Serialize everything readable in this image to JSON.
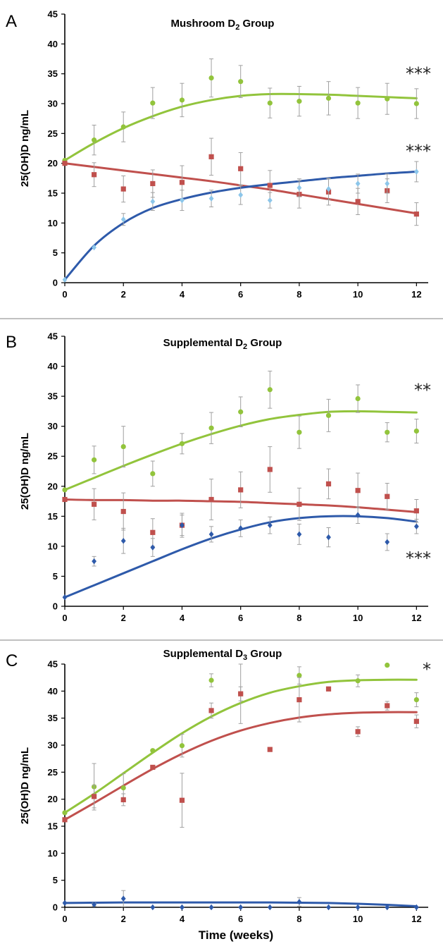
{
  "figure": {
    "x_axis_label": "Time (weeks)"
  },
  "colors": {
    "green": "#92c43c",
    "red": "#c0504d",
    "blue": "#2e5aaa",
    "light_blue": "#8cc6ea",
    "error_bar": "#a0a0a0"
  },
  "chart_data": [
    {
      "type": "scatter",
      "panel": "A",
      "title": "Mushroom D",
      "title_subscript": "2",
      "title_suffix": " Group",
      "ylabel": "25(OH)D ng/mL",
      "xlabel": "",
      "xlim": [
        0,
        12.4
      ],
      "ylim": [
        0,
        45
      ],
      "x_ticks": [
        0,
        2,
        4,
        6,
        8,
        10,
        12
      ],
      "y_ticks": [
        0,
        5,
        10,
        15,
        20,
        25,
        30,
        35,
        40,
        45
      ],
      "significance": [
        {
          "label": "***",
          "near_y": 35,
          "series": "green"
        },
        {
          "label": "***",
          "near_y": 22,
          "series": "blue"
        }
      ],
      "series": [
        {
          "name": "green",
          "marker": "circle",
          "color": "#92c43c",
          "x": [
            0,
            1,
            2,
            3,
            4,
            5,
            6,
            7,
            8,
            9,
            10,
            11,
            12
          ],
          "y": [
            20.5,
            23.9,
            26.1,
            30.1,
            30.6,
            34.3,
            33.7,
            30.1,
            30.4,
            30.9,
            30.1,
            30.8,
            30.0
          ],
          "err": [
            0,
            2.5,
            2.5,
            2.6,
            2.8,
            3.2,
            2.7,
            2.5,
            2.5,
            2.8,
            2.6,
            2.6,
            2.5
          ],
          "fit_x": [
            0,
            1,
            2,
            3,
            4,
            5,
            6,
            7,
            8,
            9,
            10,
            11,
            12
          ],
          "fit_y": [
            20.5,
            23.4,
            25.9,
            27.9,
            29.5,
            30.6,
            31.3,
            31.6,
            31.6,
            31.5,
            31.3,
            31.1,
            30.9
          ]
        },
        {
          "name": "red",
          "marker": "square",
          "color": "#c0504d",
          "x": [
            0,
            1,
            2,
            3,
            4,
            5,
            6,
            7,
            8,
            9,
            10,
            11,
            12
          ],
          "y": [
            20.0,
            18.1,
            15.7,
            16.6,
            16.8,
            21.1,
            19.1,
            16.3,
            14.8,
            15.2,
            13.6,
            15.4,
            11.5
          ],
          "err": [
            0,
            2.0,
            2.2,
            2.3,
            2.8,
            3.1,
            2.7,
            2.5,
            2.3,
            2.2,
            2.2,
            2.0,
            1.9
          ],
          "fit_x": [
            0,
            1,
            2,
            3,
            4,
            5,
            6,
            7,
            8,
            9,
            10,
            11,
            12
          ],
          "fit_y": [
            20.0,
            19.4,
            18.8,
            18.2,
            17.6,
            17.0,
            16.3,
            15.6,
            14.8,
            14.0,
            13.2,
            12.4,
            11.6
          ]
        },
        {
          "name": "blue",
          "marker": "diamond",
          "color": "#8cc6ea",
          "x": [
            0,
            1,
            2,
            3,
            4,
            5,
            6,
            7,
            8,
            9,
            10,
            11,
            12
          ],
          "y": [
            0.5,
            5.9,
            10.6,
            13.6,
            13.8,
            14.1,
            14.7,
            13.8,
            15.9,
            15.7,
            16.6,
            16.6,
            18.6
          ],
          "err": [
            0,
            0,
            1.0,
            1.5,
            1.7,
            1.4,
            1.6,
            1.3,
            1.5,
            1.8,
            1.6,
            1.6,
            1.7
          ],
          "fit_x": [
            0,
            1,
            2,
            3,
            4,
            5,
            6,
            7,
            8,
            9,
            10,
            11,
            12
          ],
          "fit_y": [
            0.5,
            6.2,
            10.0,
            12.5,
            14.0,
            15.1,
            15.9,
            16.5,
            17.0,
            17.5,
            17.9,
            18.3,
            18.6
          ],
          "fit_color": "#2e5aaa"
        }
      ]
    },
    {
      "type": "scatter",
      "panel": "B",
      "title": "Supplemental D",
      "title_subscript": "2",
      "title_suffix": " Group",
      "ylabel": "25(OH)D ng/mL",
      "xlabel": "",
      "xlim": [
        0,
        12.4
      ],
      "ylim": [
        0,
        45
      ],
      "x_ticks": [
        0,
        2,
        4,
        6,
        8,
        10,
        12
      ],
      "y_ticks": [
        0,
        5,
        10,
        15,
        20,
        25,
        30,
        35,
        40,
        45
      ],
      "significance": [
        {
          "label": "**",
          "near_y": 36,
          "series": "green"
        },
        {
          "label": "***",
          "near_y": 8,
          "series": "blue"
        }
      ],
      "series": [
        {
          "name": "green",
          "marker": "circle",
          "color": "#92c43c",
          "x": [
            0,
            1,
            2,
            3,
            4,
            5,
            6,
            7,
            8,
            9,
            10,
            11,
            12
          ],
          "y": [
            19.4,
            24.4,
            26.6,
            22.1,
            27.1,
            29.7,
            32.4,
            36.1,
            29.0,
            31.8,
            34.6,
            29.0,
            29.2
          ],
          "err": [
            0,
            2.3,
            3.4,
            2.1,
            1.7,
            2.6,
            2.5,
            3.1,
            2.7,
            2.7,
            2.3,
            1.6,
            2.0
          ],
          "fit_x": [
            0,
            1,
            2,
            3,
            4,
            5,
            6,
            7,
            8,
            9,
            10,
            11,
            12
          ],
          "fit_y": [
            19.4,
            21.4,
            23.4,
            25.3,
            27.1,
            28.7,
            30.1,
            31.2,
            31.9,
            32.4,
            32.5,
            32.4,
            32.3
          ]
        },
        {
          "name": "red",
          "marker": "square",
          "color": "#c0504d",
          "x": [
            0,
            1,
            2,
            3,
            4,
            5,
            6,
            7,
            8,
            9,
            10,
            11,
            12
          ],
          "y": [
            17.8,
            17.0,
            15.8,
            12.3,
            13.5,
            17.8,
            19.4,
            22.8,
            17.0,
            20.4,
            19.3,
            18.3,
            15.9
          ],
          "err": [
            0,
            2.6,
            3.1,
            2.3,
            2.0,
            3.4,
            3.0,
            3.8,
            2.7,
            2.5,
            2.9,
            2.2,
            1.9
          ],
          "fit_x": [
            0,
            1,
            2,
            3,
            4,
            5,
            6,
            7,
            8,
            9,
            10,
            11,
            12
          ],
          "fit_y": [
            17.8,
            17.7,
            17.7,
            17.6,
            17.6,
            17.5,
            17.4,
            17.2,
            17.0,
            16.8,
            16.5,
            16.1,
            15.7
          ]
        },
        {
          "name": "blue",
          "marker": "diamond",
          "color": "#2e5aaa",
          "x": [
            0,
            1,
            2,
            3,
            4,
            5,
            6,
            7,
            8,
            9,
            10,
            11,
            12
          ],
          "y": [
            1.5,
            7.5,
            10.9,
            9.8,
            13.5,
            12.0,
            13.0,
            13.5,
            12.0,
            11.5,
            15.2,
            10.7,
            13.3
          ],
          "err": [
            0,
            0.8,
            2.1,
            1.5,
            1.7,
            1.3,
            1.4,
            1.4,
            1.7,
            1.6,
            1.4,
            1.4,
            1.2
          ],
          "fit_x": [
            0,
            1,
            2,
            3,
            4,
            5,
            6,
            7,
            8,
            9,
            10,
            11,
            12
          ],
          "fit_y": [
            1.5,
            3.5,
            5.5,
            7.5,
            9.5,
            11.3,
            12.8,
            14.0,
            14.7,
            15.0,
            15.0,
            14.7,
            14.1
          ]
        }
      ]
    },
    {
      "type": "scatter",
      "panel": "C",
      "title": "Supplemental D",
      "title_subscript": "3",
      "title_suffix": " Group",
      "ylabel": "25(OH)D ng/mL",
      "xlabel": "Time (weeks)",
      "xlim": [
        0,
        12.4
      ],
      "ylim": [
        0,
        45
      ],
      "x_ticks": [
        0,
        2,
        4,
        6,
        8,
        10,
        12
      ],
      "y_ticks": [
        0,
        5,
        10,
        15,
        20,
        25,
        30,
        35,
        40,
        45
      ],
      "significance": [
        {
          "label": "*",
          "near_y": 44,
          "series": "green"
        }
      ],
      "series": [
        {
          "name": "green",
          "marker": "circle",
          "color": "#92c43c",
          "x": [
            0,
            1,
            2,
            3,
            4,
            5,
            6,
            8,
            10,
            11,
            12
          ],
          "y": [
            17.5,
            22.3,
            22.1,
            29.0,
            29.9,
            42.0,
            39.5,
            42.9,
            41.9,
            44.8,
            38.4
          ],
          "err": [
            0,
            4.3,
            2.6,
            0,
            2.1,
            1.2,
            5.5,
            1.6,
            1.1,
            0,
            1.3
          ],
          "fit_x": [
            0,
            1,
            2,
            3,
            4,
            5,
            6,
            7,
            8,
            9,
            10,
            11,
            12
          ],
          "fit_y": [
            17.5,
            21.0,
            24.8,
            28.6,
            32.2,
            35.3,
            37.8,
            39.7,
            40.9,
            41.7,
            42.0,
            42.1,
            42.1
          ]
        },
        {
          "name": "red",
          "marker": "square",
          "color": "#c0504d",
          "x": [
            0,
            1,
            2,
            3,
            4,
            5,
            6,
            7,
            8,
            9,
            10,
            11,
            12
          ],
          "y": [
            16.2,
            20.5,
            19.9,
            25.9,
            19.8,
            36.4,
            39.5,
            29.2,
            38.4,
            40.4,
            32.5,
            37.3,
            34.4
          ],
          "err": [
            0,
            2.1,
            1.1,
            0,
            5.0,
            1.4,
            1.3,
            0,
            4.1,
            0,
            0.9,
            0.8,
            1.2
          ],
          "fit_x": [
            0,
            1,
            2,
            3,
            4,
            5,
            6,
            7,
            8,
            9,
            10,
            11,
            12
          ],
          "fit_y": [
            16.2,
            19.3,
            22.5,
            25.6,
            28.4,
            30.8,
            32.7,
            34.1,
            35.1,
            35.7,
            36.0,
            36.1,
            36.1
          ]
        },
        {
          "name": "blue",
          "marker": "diamond",
          "color": "#2e5aaa",
          "x": [
            0,
            1,
            2,
            3,
            4,
            5,
            6,
            7,
            8,
            9,
            10,
            11,
            12
          ],
          "y": [
            0.8,
            0.5,
            1.6,
            0.0,
            0.0,
            0.0,
            0.0,
            0.0,
            1.0,
            0.0,
            0.0,
            0.0,
            0.0
          ],
          "err": [
            0,
            0.3,
            1.5,
            0,
            0,
            0,
            0,
            0,
            0.8,
            0,
            0,
            0,
            0
          ],
          "fit_x": [
            0,
            1,
            2,
            3,
            4,
            5,
            6,
            7,
            8,
            9,
            10,
            11,
            12
          ],
          "fit_y": [
            0.8,
            0.85,
            0.9,
            0.9,
            0.9,
            0.9,
            0.9,
            0.9,
            0.85,
            0.8,
            0.65,
            0.45,
            0.2
          ]
        }
      ]
    }
  ]
}
